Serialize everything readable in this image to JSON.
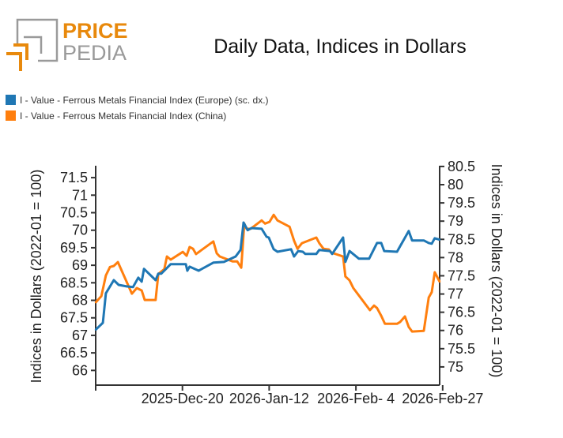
{
  "logo": {
    "line1": "PRICE",
    "line2": "PEDIA",
    "color_orange": "#e8890c",
    "color_gray": "#9a9a9a"
  },
  "chart_data": {
    "type": "line",
    "title": "Daily Data, Indices in Dollars",
    "x_unit": "days since 2025-11-27",
    "xlim": [
      0,
      91.2
    ],
    "x_ticks": [
      {
        "value": 0,
        "label": ""
      },
      {
        "value": 23,
        "label": "2025-Dec-20"
      },
      {
        "value": 46,
        "label": "2026-Jan-12"
      },
      {
        "value": 69,
        "label": "2026-Feb- 4"
      },
      {
        "value": 92,
        "label": "2026-Feb-27"
      }
    ],
    "ylabel_left": "Indices in Dollars (2022-01 = 100)",
    "ylabel_right": "Indices in Dollars (2022-01 = 100)",
    "ylim_left": [
      65.58,
      71.84
    ],
    "ylim_right": [
      74.5,
      80.52
    ],
    "yticks_left": [
      "66",
      "66.5",
      "67",
      "67.5",
      "68",
      "68.5",
      "69",
      "69.5",
      "70",
      "70.5",
      "71",
      "71.5"
    ],
    "yticks_right": [
      "75",
      "75.5",
      "76",
      "76.5",
      "77",
      "77.5",
      "78",
      "78.5",
      "79",
      "79.5",
      "80",
      "80.5"
    ],
    "series": [
      {
        "name": "I - Value - Ferrous Metals Financial Index (Europe) (sc. dx.)",
        "axis": "right",
        "color": "#1f77b4",
        "x": [
          0,
          1.9,
          2.7,
          4.8,
          6.1,
          8.2,
          9.9,
          11.3,
          12.2,
          12.8,
          15.9,
          16.6,
          17.4,
          19.9,
          23.9,
          24.3,
          24.9,
          27.3,
          31.2,
          34.0,
          37.1,
          38.4,
          39.2,
          40.3,
          41.3,
          44.0,
          45.3,
          45.9,
          47.2,
          48.2,
          51.8,
          52.6,
          53.7,
          54.9,
          55.6,
          58.5,
          59.3,
          62.1,
          62.7,
          65.6,
          66.2,
          67.3,
          69.8,
          72.5,
          74.6,
          75.7,
          76.5,
          79.9,
          83.0,
          83.9,
          87.0,
          88.3,
          89.1,
          89.9,
          91.2
        ],
        "y": [
          76.02,
          76.21,
          77.02,
          77.38,
          77.25,
          77.21,
          77.19,
          77.45,
          77.34,
          77.69,
          77.38,
          77.56,
          77.56,
          77.82,
          77.82,
          77.64,
          77.75,
          77.64,
          77.86,
          77.88,
          78.03,
          78.21,
          78.96,
          78.75,
          78.81,
          78.79,
          78.57,
          78.55,
          78.23,
          78.16,
          78.23,
          78.03,
          78.18,
          78.16,
          78.1,
          78.1,
          78.21,
          78.18,
          78.1,
          78.55,
          77.88,
          78.18,
          77.97,
          77.97,
          78.4,
          78.4,
          78.18,
          78.16,
          78.73,
          78.47,
          78.47,
          78.4,
          78.38,
          78.53,
          78.49
        ]
      },
      {
        "name": "I - Value - Ferrous Metals Financial Index (China)",
        "axis": "left",
        "color": "#ff7f0e",
        "x": [
          0,
          1.5,
          2.7,
          3.8,
          4.8,
          5.9,
          9.6,
          10.9,
          12.2,
          13.0,
          15.9,
          16.6,
          18.2,
          18.9,
          19.9,
          23.1,
          24.1,
          24.9,
          25.8,
          26.6,
          31.2,
          32.1,
          32.9,
          36.3,
          37.5,
          38.6,
          39.4,
          40.0,
          41.1,
          44.0,
          44.9,
          46.1,
          47.2,
          48.2,
          51.4,
          52.6,
          53.5,
          54.7,
          58.5,
          59.3,
          60.4,
          61.8,
          62.5,
          65.6,
          66.2,
          67.3,
          68.3,
          72.7,
          73.8,
          74.6,
          75.7,
          76.7,
          79.9,
          80.7,
          82.0,
          83.0,
          83.9,
          87.0,
          88.3,
          89.1,
          89.9,
          91.2
        ],
        "y": [
          67.94,
          68.12,
          68.71,
          68.95,
          68.98,
          69.09,
          68.19,
          68.35,
          68.28,
          68.01,
          68.01,
          68.75,
          68.89,
          69.25,
          69.16,
          69.38,
          69.27,
          69.52,
          69.47,
          69.32,
          69.68,
          69.34,
          69.25,
          69.11,
          69.11,
          68.93,
          70.19,
          70.04,
          70.04,
          70.28,
          70.19,
          70.24,
          70.44,
          70.28,
          70.1,
          69.7,
          69.47,
          69.63,
          69.79,
          69.63,
          69.47,
          69.45,
          69.36,
          69.25,
          68.68,
          68.57,
          68.35,
          67.72,
          67.85,
          67.78,
          67.56,
          67.33,
          67.33,
          67.38,
          67.54,
          67.24,
          67.11,
          67.13,
          68.08,
          68.23,
          68.8,
          68.53
        ]
      }
    ]
  }
}
